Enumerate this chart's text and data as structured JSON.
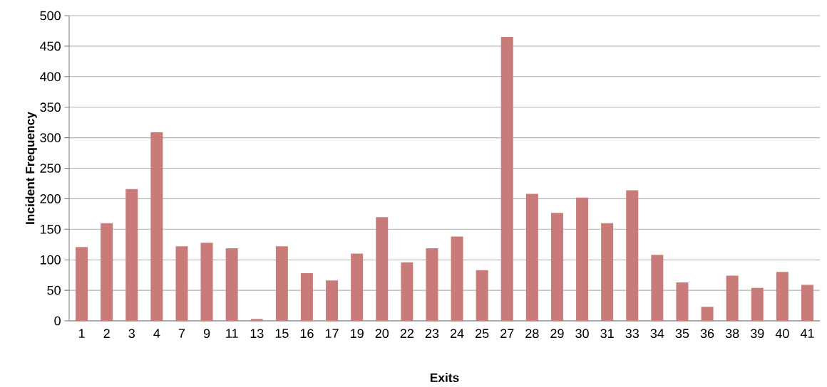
{
  "chart_data": {
    "type": "bar",
    "xlabel": "Exits",
    "ylabel": "Incident Frequency",
    "categories": [
      "1",
      "2",
      "3",
      "4",
      "7",
      "9",
      "11",
      "13",
      "15",
      "16",
      "17",
      "19",
      "20",
      "22",
      "23",
      "24",
      "25",
      "27",
      "28",
      "29",
      "30",
      "31",
      "33",
      "34",
      "35",
      "36",
      "38",
      "39",
      "40",
      "41"
    ],
    "values": [
      121,
      160,
      216,
      309,
      122,
      128,
      119,
      3,
      122,
      78,
      66,
      110,
      170,
      96,
      119,
      138,
      83,
      465,
      208,
      177,
      202,
      160,
      214,
      108,
      63,
      23,
      74,
      54,
      80,
      59
    ],
    "color": "#c97b79",
    "ylim": [
      0,
      500
    ],
    "yticks": [
      0,
      50,
      100,
      150,
      200,
      250,
      300,
      350,
      400,
      450,
      500
    ],
    "grid": "y"
  }
}
